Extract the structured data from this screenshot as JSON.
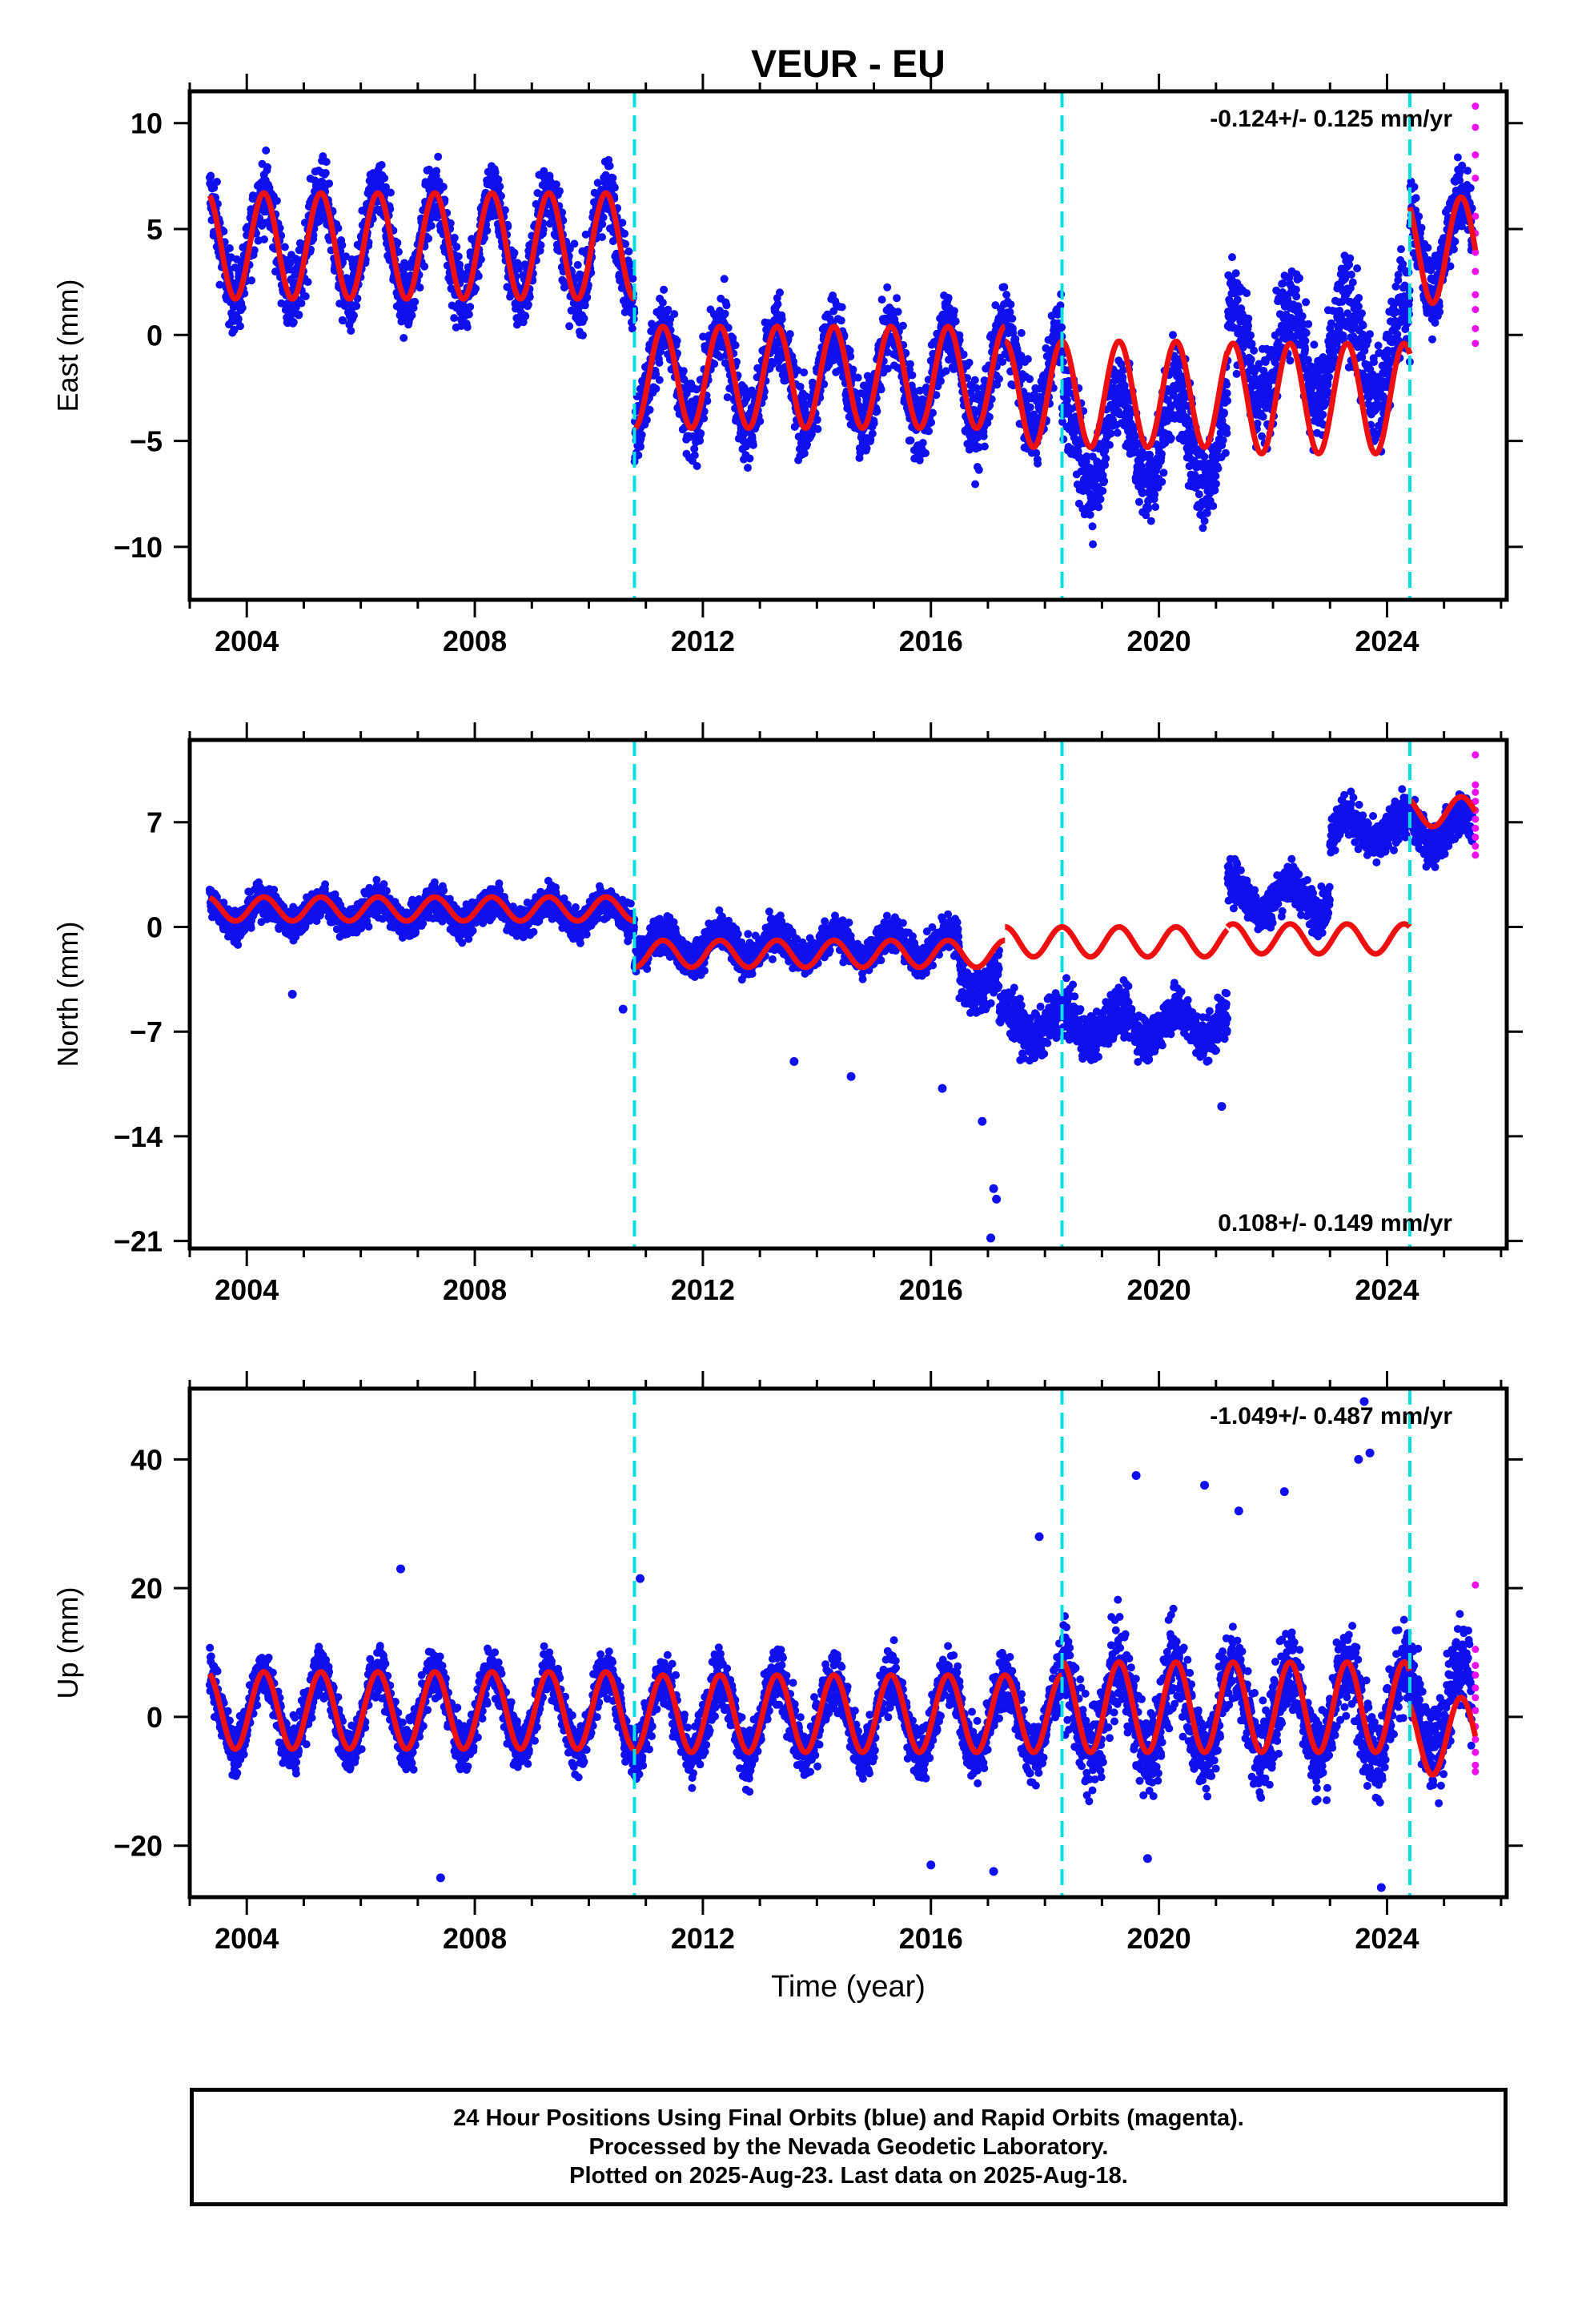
{
  "colors": {
    "final_orbits": "#1010ee",
    "rapid_orbits": "#ee10ee",
    "model": "#ee1010",
    "offsets": "#00e0e0",
    "axes": "#000000"
  },
  "chart_data": [
    {
      "type": "scatter",
      "title": "VEUR - EU",
      "xlabel": "",
      "ylabel": "East (mm)",
      "xlim": [
        2003.0,
        2026.1
      ],
      "ylim": [
        -12.5,
        11.5
      ],
      "xticks": [
        2004,
        2008,
        2012,
        2016,
        2020,
        2024
      ],
      "xticklabels": [
        "2004",
        "2008",
        "2012",
        "2016",
        "2020",
        "2024"
      ],
      "yticks": [
        10,
        5,
        0,
        -5,
        -10
      ],
      "yticklabels": [
        "10",
        "5",
        "0",
        "−5",
        "−10"
      ],
      "rate_annotation": "-0.124+/- 0.125 mm/yr",
      "rate_position": "top-right",
      "offset_epochs": [
        2010.8,
        2018.3,
        2024.4
      ],
      "series": [
        {
          "name": "Final orbits",
          "kind": "daily positions",
          "x_start": 2003.35,
          "x_end": 2025.5,
          "segments": [
            {
              "from": 2003.35,
              "to": 2010.8,
              "level": 4.2,
              "amplitude": 2.5,
              "scatter": 2.2
            },
            {
              "from": 2010.8,
              "to": 2018.3,
              "level": -2.0,
              "amplitude": 2.3,
              "scatter": 2.4
            },
            {
              "from": 2018.3,
              "to": 2021.2,
              "level": -4.8,
              "amplitude": 2.3,
              "scatter": 2.8
            },
            {
              "from": 2021.2,
              "to": 2024.4,
              "level": -0.8,
              "amplitude": 2.3,
              "scatter": 3.0
            },
            {
              "from": 2024.4,
              "to": 2025.5,
              "level": 4.3,
              "amplitude": 2.3,
              "scatter": 2.2
            }
          ]
        },
        {
          "name": "Rapid orbits",
          "kind": "daily positions",
          "points": [
            [
              2025.55,
              10.8
            ],
            [
              2025.55,
              9.8
            ],
            [
              2025.55,
              8.5
            ],
            [
              2025.55,
              7.4
            ],
            [
              2025.55,
              5.6
            ],
            [
              2025.55,
              4.8
            ],
            [
              2025.55,
              3.9
            ],
            [
              2025.55,
              3.0
            ],
            [
              2025.55,
              1.9
            ],
            [
              2025.55,
              1.2
            ],
            [
              2025.55,
              0.3
            ],
            [
              2025.55,
              -0.4
            ]
          ]
        },
        {
          "name": "Model",
          "kind": "fit",
          "segments": [
            {
              "from": 2003.35,
              "to": 2010.8,
              "level": 4.2,
              "amplitude": 2.5
            },
            {
              "from": 2010.8,
              "to": 2017.3,
              "level": -2.0,
              "amplitude": 2.4
            },
            {
              "from": 2017.3,
              "to": 2021.2,
              "level": -2.8,
              "amplitude": 2.5
            },
            {
              "from": 2021.2,
              "to": 2024.4,
              "level": -3.0,
              "amplitude": 2.6
            },
            {
              "from": 2024.4,
              "to": 2025.55,
              "level": 4.0,
              "amplitude": 2.5
            }
          ]
        }
      ]
    },
    {
      "type": "scatter",
      "title": "",
      "xlabel": "",
      "ylabel": "North (mm)",
      "xlim": [
        2003.0,
        2026.1
      ],
      "ylim": [
        -21.5,
        12.5
      ],
      "xticks": [
        2004,
        2008,
        2012,
        2016,
        2020,
        2024
      ],
      "xticklabels": [
        "2004",
        "2008",
        "2012",
        "2016",
        "2020",
        "2024"
      ],
      "yticks": [
        7,
        0,
        -7,
        -14,
        -21
      ],
      "yticklabels": [
        "7",
        "0",
        "−7",
        "−14",
        "−21"
      ],
      "rate_annotation": "0.108+/- 0.149 mm/yr",
      "rate_position": "bottom-right",
      "offset_epochs": [
        2010.8,
        2018.3,
        2024.4
      ],
      "series": [
        {
          "name": "Final orbits",
          "kind": "daily positions",
          "x_start": 2003.35,
          "x_end": 2025.5,
          "segments": [
            {
              "from": 2003.35,
              "to": 2010.8,
              "level": 1.0,
              "amplitude": 0.8,
              "scatter": 1.4
            },
            {
              "from": 2010.8,
              "to": 2016.5,
              "level": -1.3,
              "amplitude": 0.9,
              "scatter": 1.6
            },
            {
              "from": 2016.5,
              "to": 2017.2,
              "level": -3.5,
              "amplitude": 1.0,
              "scatter": 2.0
            },
            {
              "from": 2017.2,
              "to": 2021.2,
              "level": -6.5,
              "amplitude": 1.0,
              "scatter": 2.0
            },
            {
              "from": 2021.2,
              "to": 2023.0,
              "level": 2.0,
              "amplitude": 1.0,
              "scatter": 1.8
            },
            {
              "from": 2023.0,
              "to": 2025.5,
              "level": 6.5,
              "amplitude": 1.0,
              "scatter": 1.8
            }
          ],
          "outliers": [
            [
              2017.05,
              -20.8
            ],
            [
              2017.1,
              -17.5
            ],
            [
              2017.15,
              -18.2
            ],
            [
              2016.9,
              -13.0
            ],
            [
              2016.2,
              -10.8
            ],
            [
              2014.6,
              -10.0
            ],
            [
              2013.6,
              -9.0
            ],
            [
              2010.6,
              -5.5
            ],
            [
              2021.1,
              -12.0
            ],
            [
              2004.8,
              -4.5
            ]
          ]
        },
        {
          "name": "Rapid orbits",
          "kind": "daily positions",
          "points": [
            [
              2025.55,
              11.5
            ],
            [
              2025.55,
              9.5
            ],
            [
              2025.55,
              9.0
            ],
            [
              2025.55,
              8.4
            ],
            [
              2025.55,
              7.8
            ],
            [
              2025.55,
              7.2
            ],
            [
              2025.55,
              6.6
            ],
            [
              2025.55,
              6.0
            ],
            [
              2025.55,
              5.4
            ],
            [
              2025.55,
              4.8
            ]
          ]
        },
        {
          "name": "Model",
          "kind": "fit",
          "segments": [
            {
              "from": 2003.35,
              "to": 2010.8,
              "level": 1.2,
              "amplitude": 0.8
            },
            {
              "from": 2010.8,
              "to": 2017.3,
              "level": -1.8,
              "amplitude": 0.9
            },
            {
              "from": 2017.3,
              "to": 2021.2,
              "level": -1.0,
              "amplitude": 1.0
            },
            {
              "from": 2021.2,
              "to": 2024.4,
              "level": -0.8,
              "amplitude": 1.0
            },
            {
              "from": 2024.4,
              "to": 2025.55,
              "level": 7.7,
              "amplitude": 1.0
            }
          ]
        }
      ]
    },
    {
      "type": "scatter",
      "title": "",
      "xlabel": "Time (year)",
      "ylabel": "Up (mm)",
      "xlim": [
        2003.0,
        2026.1
      ],
      "ylim": [
        -28,
        51
      ],
      "xticks": [
        2004,
        2008,
        2012,
        2016,
        2020,
        2024
      ],
      "xticklabels": [
        "2004",
        "2008",
        "2012",
        "2016",
        "2020",
        "2024"
      ],
      "yticks": [
        40,
        20,
        0,
        -20
      ],
      "yticklabels": [
        "40",
        "20",
        "0",
        "−20"
      ],
      "rate_annotation": "-1.049+/- 0.487 mm/yr",
      "rate_position": "top-right",
      "offset_epochs": [
        2010.8,
        2018.3,
        2024.4
      ],
      "series": [
        {
          "name": "Final orbits",
          "kind": "daily positions",
          "x_start": 2003.35,
          "x_end": 2025.5,
          "segments": [
            {
              "from": 2003.35,
              "to": 2010.8,
              "level": 1.0,
              "amplitude": 6.0,
              "scatter": 5.0
            },
            {
              "from": 2010.8,
              "to": 2018.3,
              "level": 0.0,
              "amplitude": 6.0,
              "scatter": 6.0
            },
            {
              "from": 2018.3,
              "to": 2025.5,
              "level": 1.0,
              "amplitude": 7.0,
              "scatter": 9.0
            }
          ],
          "outliers": [
            [
              2023.6,
              49.0
            ],
            [
              2023.7,
              41.0
            ],
            [
              2023.5,
              40.0
            ],
            [
              2019.6,
              37.5
            ],
            [
              2020.8,
              36.0
            ],
            [
              2022.2,
              35.0
            ],
            [
              2021.4,
              32.0
            ],
            [
              2017.9,
              28.0
            ],
            [
              2006.7,
              23.0
            ],
            [
              2010.9,
              21.5
            ],
            [
              2007.4,
              -25.0
            ],
            [
              2023.9,
              -26.5
            ],
            [
              2017.1,
              -24.0
            ],
            [
              2016.0,
              -23.0
            ],
            [
              2019.8,
              -22.0
            ]
          ]
        },
        {
          "name": "Rapid orbits",
          "kind": "daily positions",
          "points": [
            [
              2025.55,
              20.5
            ],
            [
              2025.55,
              10.5
            ],
            [
              2025.55,
              8.0
            ],
            [
              2025.55,
              6.5
            ],
            [
              2025.55,
              4.5
            ],
            [
              2025.55,
              3.0
            ],
            [
              2025.55,
              1.0
            ],
            [
              2025.55,
              -1.5
            ],
            [
              2025.55,
              -3.5
            ],
            [
              2025.55,
              -5.5
            ],
            [
              2025.55,
              -7.5
            ],
            [
              2025.55,
              -8.5
            ]
          ]
        },
        {
          "name": "Model",
          "kind": "fit",
          "segments": [
            {
              "from": 2003.35,
              "to": 2010.8,
              "level": 1.0,
              "amplitude": 6.0
            },
            {
              "from": 2010.8,
              "to": 2018.3,
              "level": 0.5,
              "amplitude": 6.0
            },
            {
              "from": 2018.3,
              "to": 2024.4,
              "level": 1.5,
              "amplitude": 7.0
            },
            {
              "from": 2024.4,
              "to": 2025.55,
              "level": -3.0,
              "amplitude": 6.0
            }
          ]
        }
      ]
    }
  ],
  "footer": {
    "line1": "24 Hour Positions Using Final Orbits (blue) and Rapid Orbits (magenta).",
    "line2": "Processed by the Nevada Geodetic Laboratory.",
    "line3": "Plotted on 2025-Aug-23. Last data on 2025-Aug-18."
  }
}
